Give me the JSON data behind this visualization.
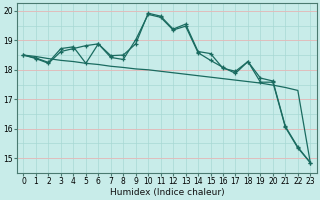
{
  "xlabel": "Humidex (Indice chaleur)",
  "background_color": "#c8ece9",
  "grid_color_main": "#a8d8d4",
  "grid_color_red": "#e8b8b8",
  "line_color": "#1a6b60",
  "x_values": [
    0,
    1,
    2,
    3,
    4,
    5,
    6,
    7,
    8,
    9,
    10,
    11,
    12,
    13,
    14,
    15,
    16,
    17,
    18,
    19,
    20,
    21,
    22,
    23
  ],
  "series1": [
    18.5,
    18.45,
    18.38,
    18.32,
    18.28,
    18.22,
    18.18,
    18.12,
    18.08,
    18.03,
    18.0,
    17.95,
    17.9,
    17.85,
    17.8,
    17.75,
    17.7,
    17.65,
    17.6,
    17.55,
    17.48,
    17.4,
    17.3,
    14.85
  ],
  "series2": [
    18.5,
    18.4,
    18.25,
    18.72,
    18.78,
    18.22,
    18.88,
    18.48,
    18.5,
    18.88,
    19.92,
    19.82,
    19.38,
    19.55,
    18.62,
    18.55,
    18.05,
    17.95,
    18.28,
    17.72,
    17.62,
    16.08,
    15.38,
    14.85
  ],
  "series3": [
    18.5,
    18.38,
    18.22,
    18.62,
    18.72,
    18.82,
    18.88,
    18.42,
    18.35,
    19.02,
    19.88,
    19.78,
    19.35,
    19.48,
    18.58,
    18.32,
    18.08,
    17.88,
    18.28,
    17.58,
    17.58,
    16.05,
    15.35,
    14.85
  ],
  "ylim": [
    14.5,
    20.25
  ],
  "yticks": [
    15,
    16,
    17,
    18,
    19,
    20
  ],
  "xlim": [
    -0.5,
    23.5
  ]
}
